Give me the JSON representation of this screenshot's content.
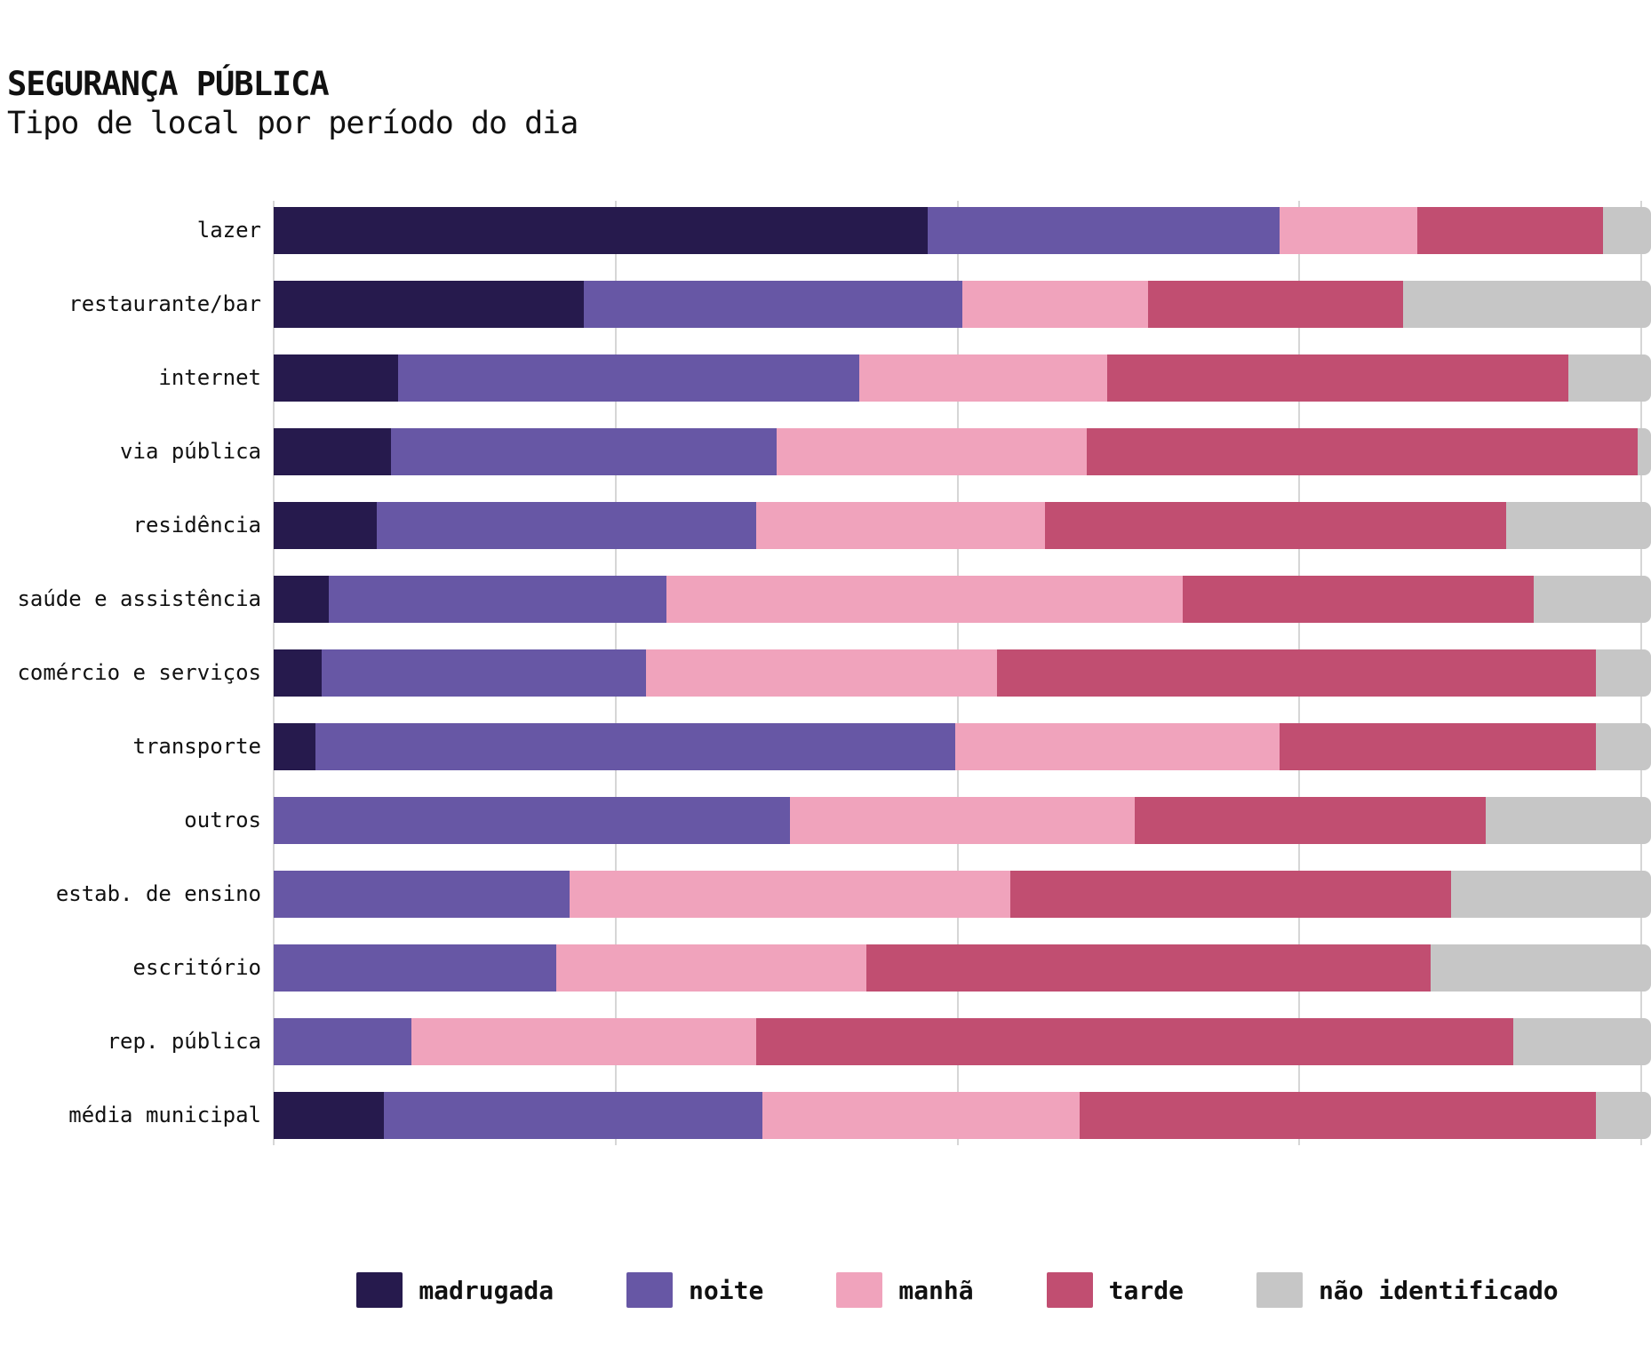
{
  "header": {
    "title": "SEGURANÇA PÚBLICA",
    "subtitle": "Tipo de local por período do dia"
  },
  "chart_data": {
    "type": "bar",
    "orientation": "horizontal",
    "stacked": true,
    "unit": "percent",
    "xlim": [
      0,
      100
    ],
    "grid": "vertical lines at 0, 25, 50, 75, 100 percent",
    "legend_position": "bottom",
    "title": "SEGURANÇA PÚBLICA",
    "subtitle": "Tipo de local por período do dia",
    "categories": [
      "lazer",
      "restaurante/bar",
      "internet",
      "via pública",
      "residência",
      "saúde e assistência",
      "comércio e serviços",
      "transporte",
      "outros",
      "estab. de ensino",
      "escritório",
      "rep. pública",
      "média municipal"
    ],
    "series": [
      {
        "key": "madrugada",
        "name": "madrugada",
        "color": "#261a4d",
        "values": [
          47.5,
          22.5,
          9,
          8.5,
          7.5,
          4,
          3.5,
          3,
          0,
          0,
          0,
          0,
          8
        ]
      },
      {
        "key": "noite",
        "name": "noite",
        "color": "#6757a5",
        "values": [
          25.5,
          27.5,
          33.5,
          28,
          27.5,
          24.5,
          23.5,
          46.5,
          37.5,
          21.5,
          20.5,
          10,
          27.5
        ]
      },
      {
        "key": "manha",
        "name": "manhã",
        "color": "#f0a3bc",
        "values": [
          10,
          13.5,
          18,
          22.5,
          21,
          37.5,
          25.5,
          23.5,
          25,
          32,
          22.5,
          25,
          23
        ]
      },
      {
        "key": "tarde",
        "name": "tarde",
        "color": "#c14e71",
        "values": [
          13.5,
          18.5,
          33.5,
          40,
          33.5,
          25.5,
          43.5,
          23,
          25.5,
          32,
          41,
          55,
          37.5
        ]
      },
      {
        "key": "nao-identificado",
        "name": "não identificado",
        "color": "#c6c6c6",
        "values": [
          3.5,
          18,
          6,
          1,
          10.5,
          8.5,
          4,
          4,
          12,
          14.5,
          16,
          10,
          4
        ]
      }
    ]
  },
  "colors": {
    "background": "#ffffff",
    "text": "#111111",
    "gridline": "#d6d6d6"
  }
}
